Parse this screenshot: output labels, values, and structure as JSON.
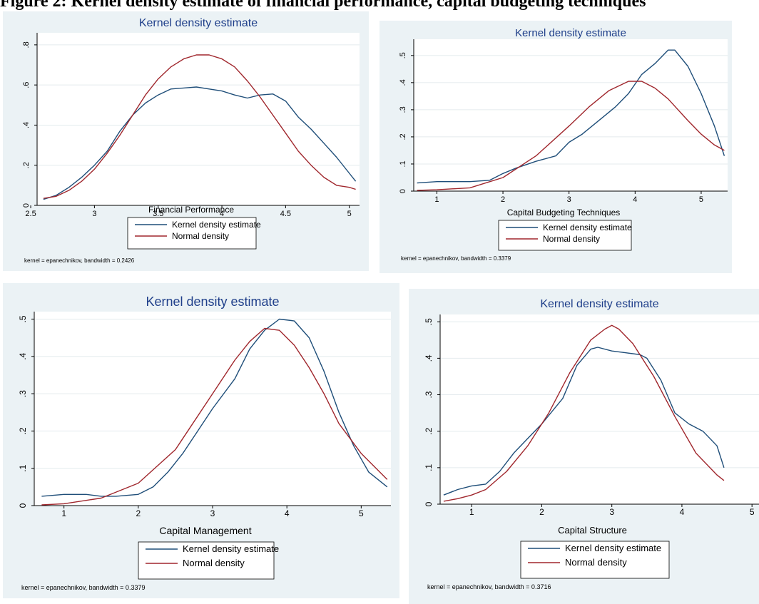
{
  "header_text": "Figure 2: Kernel density estimate of financial performance, capital budgeting techniques",
  "colors": {
    "kernel": "#1f4e79",
    "normal": "#a0272d",
    "panel_bg": "#ebf2f5",
    "plot_bg": "#ffffff",
    "grid": "#e4ebee",
    "title": "#1f3f8a"
  },
  "chart_data": [
    {
      "type": "line",
      "title": "Kernel density estimate",
      "xlabel": "Financial Performance",
      "xlim": [
        2.55,
        5.08
      ],
      "ylim": [
        0,
        0.86
      ],
      "xticks": [
        "2.5",
        "3",
        "3.5",
        "4",
        "4.5",
        "5"
      ],
      "xtick_values": [
        2.5,
        3,
        3.5,
        4,
        4.5,
        5
      ],
      "yticks": [
        "0",
        ".2",
        ".4",
        ".6",
        ".8"
      ],
      "ytick_values": [
        0,
        0.2,
        0.4,
        0.6,
        0.8
      ],
      "legend": [
        "Kernel density estimate",
        "Normal density"
      ],
      "note": "kernel = epanechnikov, bandwidth = 0.2426",
      "series": [
        {
          "name": "Kernel density estimate",
          "x": [
            2.6,
            2.7,
            2.8,
            2.9,
            3.0,
            3.1,
            3.2,
            3.3,
            3.4,
            3.5,
            3.6,
            3.7,
            3.8,
            3.9,
            4.0,
            4.1,
            4.2,
            4.3,
            4.4,
            4.5,
            4.6,
            4.7,
            4.8,
            4.9,
            5.0,
            5.05
          ],
          "y": [
            0.03,
            0.05,
            0.09,
            0.14,
            0.2,
            0.27,
            0.37,
            0.45,
            0.51,
            0.55,
            0.58,
            0.585,
            0.59,
            0.58,
            0.57,
            0.55,
            0.535,
            0.55,
            0.555,
            0.52,
            0.44,
            0.38,
            0.31,
            0.24,
            0.16,
            0.12
          ]
        },
        {
          "name": "Normal density",
          "x": [
            2.6,
            2.7,
            2.8,
            2.9,
            3.0,
            3.1,
            3.2,
            3.3,
            3.4,
            3.5,
            3.6,
            3.7,
            3.8,
            3.9,
            4.0,
            4.1,
            4.2,
            4.3,
            4.4,
            4.5,
            4.6,
            4.7,
            4.8,
            4.9,
            5.0,
            5.05
          ],
          "y": [
            0.035,
            0.045,
            0.075,
            0.12,
            0.18,
            0.26,
            0.35,
            0.45,
            0.55,
            0.63,
            0.69,
            0.73,
            0.75,
            0.75,
            0.73,
            0.69,
            0.62,
            0.54,
            0.45,
            0.36,
            0.27,
            0.2,
            0.14,
            0.1,
            0.09,
            0.08
          ]
        }
      ]
    },
    {
      "type": "line",
      "title": "Kernel density estimate",
      "xlabel": "Capital Budgeting Techniques",
      "xlim": [
        0.65,
        5.4
      ],
      "ylim": [
        0,
        0.56
      ],
      "xticks": [
        "1",
        "2",
        "3",
        "4",
        "5"
      ],
      "xtick_values": [
        1,
        2,
        3,
        4,
        5
      ],
      "yticks": [
        "0",
        ".1",
        ".2",
        ".3",
        ".4",
        ".5"
      ],
      "ytick_values": [
        0,
        0.1,
        0.2,
        0.3,
        0.4,
        0.5
      ],
      "legend": [
        "Kernel density estimate",
        "Normal density"
      ],
      "note": "kernel = epanechnikov, bandwidth = 0.3379",
      "series": [
        {
          "name": "Kernel density estimate",
          "x": [
            0.7,
            1.0,
            1.5,
            1.8,
            2.0,
            2.2,
            2.5,
            2.8,
            3.0,
            3.2,
            3.5,
            3.7,
            3.9,
            4.1,
            4.3,
            4.5,
            4.6,
            4.8,
            5.0,
            5.2,
            5.35
          ],
          "y": [
            0.03,
            0.035,
            0.035,
            0.04,
            0.065,
            0.085,
            0.11,
            0.13,
            0.18,
            0.21,
            0.27,
            0.31,
            0.36,
            0.43,
            0.47,
            0.52,
            0.52,
            0.46,
            0.36,
            0.24,
            0.13
          ]
        },
        {
          "name": "Normal density",
          "x": [
            0.7,
            1.0,
            1.5,
            2.0,
            2.5,
            3.0,
            3.3,
            3.6,
            3.9,
            4.1,
            4.3,
            4.5,
            4.8,
            5.0,
            5.2,
            5.35
          ],
          "y": [
            0.003,
            0.005,
            0.012,
            0.05,
            0.13,
            0.24,
            0.31,
            0.37,
            0.405,
            0.405,
            0.38,
            0.34,
            0.26,
            0.21,
            0.17,
            0.15
          ]
        }
      ]
    },
    {
      "type": "line",
      "title": "Kernel density estimate",
      "xlabel": "Capital Management",
      "xlim": [
        0.6,
        5.4
      ],
      "ylim": [
        0,
        0.52
      ],
      "xticks": [
        "1",
        "2",
        "3",
        "4",
        "5"
      ],
      "xtick_values": [
        1,
        2,
        3,
        4,
        5
      ],
      "yticks": [
        "0",
        ".1",
        ".2",
        ".3",
        ".4",
        ".5"
      ],
      "ytick_values": [
        0,
        0.1,
        0.2,
        0.3,
        0.4,
        0.5
      ],
      "legend": [
        "Kernel density estimate",
        "Normal density"
      ],
      "note": "kernel = epanechnikov, bandwidth = 0.3379",
      "series": [
        {
          "name": "Kernel density estimate",
          "x": [
            0.7,
            1.0,
            1.3,
            1.5,
            1.7,
            2.0,
            2.2,
            2.4,
            2.6,
            2.8,
            3.0,
            3.3,
            3.5,
            3.7,
            3.9,
            4.1,
            4.3,
            4.5,
            4.7,
            4.9,
            5.1,
            5.35
          ],
          "y": [
            0.025,
            0.03,
            0.03,
            0.025,
            0.025,
            0.03,
            0.05,
            0.09,
            0.14,
            0.2,
            0.26,
            0.34,
            0.42,
            0.47,
            0.5,
            0.495,
            0.45,
            0.36,
            0.25,
            0.16,
            0.09,
            0.05
          ]
        },
        {
          "name": "Normal density",
          "x": [
            0.7,
            1.0,
            1.5,
            2.0,
            2.5,
            3.0,
            3.3,
            3.5,
            3.7,
            3.9,
            4.1,
            4.3,
            4.5,
            4.7,
            5.0,
            5.35
          ],
          "y": [
            0.002,
            0.005,
            0.02,
            0.06,
            0.15,
            0.3,
            0.39,
            0.44,
            0.475,
            0.47,
            0.43,
            0.37,
            0.3,
            0.22,
            0.14,
            0.07
          ]
        }
      ]
    },
    {
      "type": "line",
      "title": "Kernel density estimate",
      "xlabel": "Capital Structure",
      "xlim": [
        0.55,
        5.1
      ],
      "ylim": [
        0,
        0.52
      ],
      "xticks": [
        "1",
        "2",
        "3",
        "4",
        "5"
      ],
      "xtick_values": [
        1,
        2,
        3,
        4,
        5
      ],
      "yticks": [
        "0",
        ".1",
        ".2",
        ".3",
        ".4",
        ".5"
      ],
      "ytick_values": [
        0,
        0.1,
        0.2,
        0.3,
        0.4,
        0.5
      ],
      "legend": [
        "Kernel density estimate",
        "Normal density"
      ],
      "note": "kernel = epanechnikov, bandwidth = 0.3716",
      "series": [
        {
          "name": "Kernel density estimate",
          "x": [
            0.6,
            0.8,
            1.0,
            1.2,
            1.4,
            1.6,
            1.8,
            2.0,
            2.3,
            2.5,
            2.7,
            2.8,
            3.0,
            3.2,
            3.4,
            3.5,
            3.7,
            3.9,
            4.1,
            4.3,
            4.5,
            4.6
          ],
          "y": [
            0.025,
            0.04,
            0.05,
            0.055,
            0.09,
            0.14,
            0.18,
            0.22,
            0.29,
            0.38,
            0.425,
            0.43,
            0.42,
            0.415,
            0.41,
            0.4,
            0.34,
            0.25,
            0.22,
            0.2,
            0.16,
            0.1
          ]
        },
        {
          "name": "Normal density",
          "x": [
            0.6,
            0.8,
            1.0,
            1.2,
            1.5,
            1.8,
            2.1,
            2.4,
            2.7,
            2.9,
            3.0,
            3.1,
            3.3,
            3.6,
            3.9,
            4.2,
            4.5,
            4.6
          ],
          "y": [
            0.008,
            0.015,
            0.025,
            0.04,
            0.09,
            0.16,
            0.25,
            0.36,
            0.45,
            0.48,
            0.49,
            0.48,
            0.44,
            0.35,
            0.24,
            0.14,
            0.08,
            0.065
          ]
        }
      ]
    }
  ]
}
